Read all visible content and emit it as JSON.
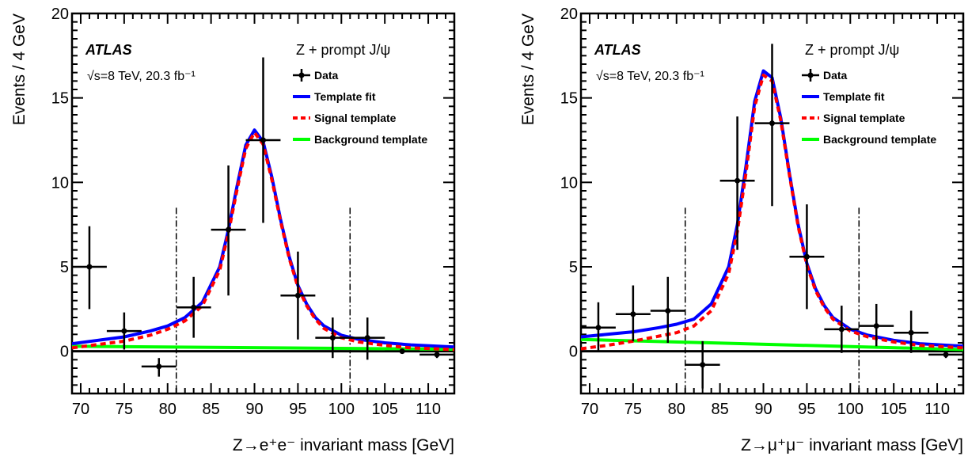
{
  "chart_data": [
    {
      "type": "scatter",
      "title": "",
      "xlabel": "Z→e⁺e⁻ invariant mass [GeV]",
      "ylabel": "Events / 4 GeV",
      "xlim": [
        69,
        113
      ],
      "ylim": [
        -2.5,
        20
      ],
      "xticks": [
        "70",
        "75",
        "80",
        "85",
        "90",
        "95",
        "100",
        "105",
        "110"
      ],
      "yticks": [
        "0",
        "5",
        "10",
        "15",
        "20"
      ],
      "atlas_label": "ATLAS",
      "energy_label": "√s=8 TeV, 20.3 fb⁻¹",
      "process_label": "Z + prompt J/ψ",
      "legend": [
        "Data",
        "Template fit",
        "Signal template",
        "Background template"
      ],
      "colors": {
        "data": "#000000",
        "fit": "#0000ff",
        "signal": "#ff0000",
        "background": "#00ff00"
      },
      "signal_window": [
        81,
        101
      ],
      "series": [
        {
          "name": "Data",
          "points": [
            {
              "x": 71,
              "y": 5.0,
              "ylo": 2.5,
              "yhi": 7.4
            },
            {
              "x": 75,
              "y": 1.2,
              "ylo": 0.1,
              "yhi": 2.3
            },
            {
              "x": 79,
              "y": -0.9,
              "ylo": -1.5,
              "yhi": -0.4
            },
            {
              "x": 83,
              "y": 2.6,
              "ylo": 0.8,
              "yhi": 4.4
            },
            {
              "x": 87,
              "y": 7.2,
              "ylo": 3.3,
              "yhi": 11.0
            },
            {
              "x": 91,
              "y": 12.5,
              "ylo": 7.6,
              "yhi": 17.4
            },
            {
              "x": 95,
              "y": 3.3,
              "ylo": 0.7,
              "yhi": 5.9
            },
            {
              "x": 99,
              "y": 0.8,
              "ylo": -0.4,
              "yhi": 2.0
            },
            {
              "x": 103,
              "y": 0.8,
              "ylo": -0.5,
              "yhi": 2.0
            },
            {
              "x": 107,
              "y": 0.0,
              "ylo": 0.0,
              "yhi": 0.0
            },
            {
              "x": 111,
              "y": -0.2,
              "ylo": -0.4,
              "yhi": 0.0
            }
          ]
        },
        {
          "name": "Template fit",
          "x": [
            69,
            72,
            75,
            78,
            80,
            82,
            84,
            86,
            87,
            88,
            89,
            90,
            91,
            92,
            93,
            94,
            95,
            96,
            97,
            98,
            100,
            102,
            105,
            108,
            113
          ],
          "y": [
            0.45,
            0.65,
            0.85,
            1.2,
            1.5,
            2.0,
            2.9,
            5.0,
            7.2,
            9.8,
            12.2,
            13.1,
            12.4,
            10.3,
            7.8,
            5.6,
            3.9,
            2.8,
            2.0,
            1.5,
            0.95,
            0.7,
            0.5,
            0.38,
            0.25
          ]
        },
        {
          "name": "Signal template",
          "x": [
            69,
            72,
            75,
            78,
            80,
            82,
            84,
            86,
            87,
            88,
            89,
            90,
            91,
            92,
            93,
            94,
            95,
            96,
            97,
            98,
            100,
            102,
            105,
            108,
            113
          ],
          "y": [
            0.2,
            0.4,
            0.6,
            0.95,
            1.3,
            1.8,
            2.7,
            4.8,
            7.0,
            9.6,
            12.0,
            12.95,
            12.25,
            10.15,
            7.7,
            5.5,
            3.8,
            2.7,
            1.9,
            1.35,
            0.8,
            0.55,
            0.35,
            0.2,
            0.1
          ]
        },
        {
          "name": "Background template",
          "x": [
            69,
            113
          ],
          "y": [
            0.3,
            0.12
          ]
        }
      ]
    },
    {
      "type": "scatter",
      "title": "",
      "xlabel": "Z→μ⁺μ⁻ invariant mass [GeV]",
      "ylabel": "Events / 4 GeV",
      "xlim": [
        69,
        113
      ],
      "ylim": [
        -2.5,
        20
      ],
      "xticks": [
        "70",
        "75",
        "80",
        "85",
        "90",
        "95",
        "100",
        "105",
        "110"
      ],
      "yticks": [
        "0",
        "5",
        "10",
        "15",
        "20"
      ],
      "atlas_label": "ATLAS",
      "energy_label": "√s=8 TeV, 20.3 fb⁻¹",
      "process_label": "Z + prompt J/ψ",
      "legend": [
        "Data",
        "Template fit",
        "Signal template",
        "Background template"
      ],
      "colors": {
        "data": "#000000",
        "fit": "#0000ff",
        "signal": "#ff0000",
        "background": "#00ff00"
      },
      "signal_window": [
        81,
        101
      ],
      "series": [
        {
          "name": "Data",
          "points": [
            {
              "x": 71,
              "y": 1.4,
              "ylo": 0.0,
              "yhi": 2.9
            },
            {
              "x": 75,
              "y": 2.2,
              "ylo": 0.6,
              "yhi": 3.9
            },
            {
              "x": 79,
              "y": 2.4,
              "ylo": 0.5,
              "yhi": 4.4
            },
            {
              "x": 83,
              "y": -0.8,
              "ylo": -2.2,
              "yhi": 0.6
            },
            {
              "x": 87,
              "y": 10.1,
              "ylo": 6.0,
              "yhi": 13.9
            },
            {
              "x": 91,
              "y": 13.5,
              "ylo": 8.6,
              "yhi": 18.2
            },
            {
              "x": 95,
              "y": 5.6,
              "ylo": 2.5,
              "yhi": 8.7
            },
            {
              "x": 99,
              "y": 1.3,
              "ylo": -0.1,
              "yhi": 2.7
            },
            {
              "x": 103,
              "y": 1.5,
              "ylo": 0.3,
              "yhi": 2.8
            },
            {
              "x": 107,
              "y": 1.1,
              "ylo": -0.1,
              "yhi": 2.4
            },
            {
              "x": 111,
              "y": -0.2,
              "ylo": -0.4,
              "yhi": 0.0
            }
          ]
        },
        {
          "name": "Template fit",
          "x": [
            69,
            72,
            75,
            78,
            80,
            82,
            84,
            86,
            87,
            88,
            89,
            90,
            91,
            92,
            93,
            94,
            95,
            96,
            97,
            98,
            100,
            102,
            105,
            108,
            113
          ],
          "y": [
            0.85,
            1.0,
            1.15,
            1.4,
            1.6,
            1.9,
            2.8,
            5.0,
            7.5,
            11.0,
            14.8,
            16.6,
            16.2,
            13.8,
            10.5,
            7.5,
            5.2,
            3.7,
            2.7,
            2.0,
            1.3,
            0.95,
            0.65,
            0.45,
            0.3
          ]
        },
        {
          "name": "Signal template",
          "x": [
            69,
            72,
            75,
            78,
            80,
            82,
            84,
            86,
            87,
            88,
            89,
            90,
            91,
            92,
            93,
            94,
            95,
            96,
            97,
            98,
            100,
            102,
            105,
            108,
            113
          ],
          "y": [
            0.15,
            0.35,
            0.6,
            0.9,
            1.1,
            1.5,
            2.4,
            4.6,
            7.1,
            10.6,
            14.5,
            16.35,
            16.0,
            13.65,
            10.4,
            7.4,
            5.1,
            3.6,
            2.6,
            1.9,
            1.2,
            0.85,
            0.55,
            0.35,
            0.2
          ]
        },
        {
          "name": "Background template",
          "x": [
            69,
            113
          ],
          "y": [
            0.7,
            0.1
          ]
        }
      ]
    }
  ]
}
